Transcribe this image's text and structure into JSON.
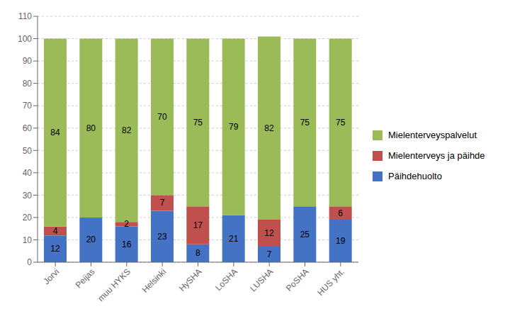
{
  "chart_data": {
    "type": "bar",
    "stacked": true,
    "categories": [
      "Jorvi",
      "Peijas",
      "muu HYKS",
      "Helsinki",
      "HySHA",
      "LoSHA",
      "LUSHA",
      "PoSHA",
      "HUS yht."
    ],
    "series": [
      {
        "name": "Päihdehuolto",
        "color": "#4472C4",
        "values": [
          12,
          20,
          16,
          23,
          8,
          21,
          7,
          25,
          19
        ]
      },
      {
        "name": "Mielenterveys ja päihde",
        "color": "#C0504D",
        "values": [
          4,
          0,
          2,
          7,
          17,
          0,
          12,
          0,
          6
        ]
      },
      {
        "name": "Mielenterveyspalvelut",
        "color": "#9BBB59",
        "values": [
          84,
          80,
          82,
          70,
          75,
          79,
          82,
          75,
          75
        ]
      }
    ],
    "ylim": [
      0,
      110
    ],
    "yticks": [
      0,
      10,
      20,
      30,
      40,
      50,
      60,
      70,
      80,
      90,
      100,
      110
    ],
    "grid": true,
    "legend": "right",
    "data_labels": true
  }
}
